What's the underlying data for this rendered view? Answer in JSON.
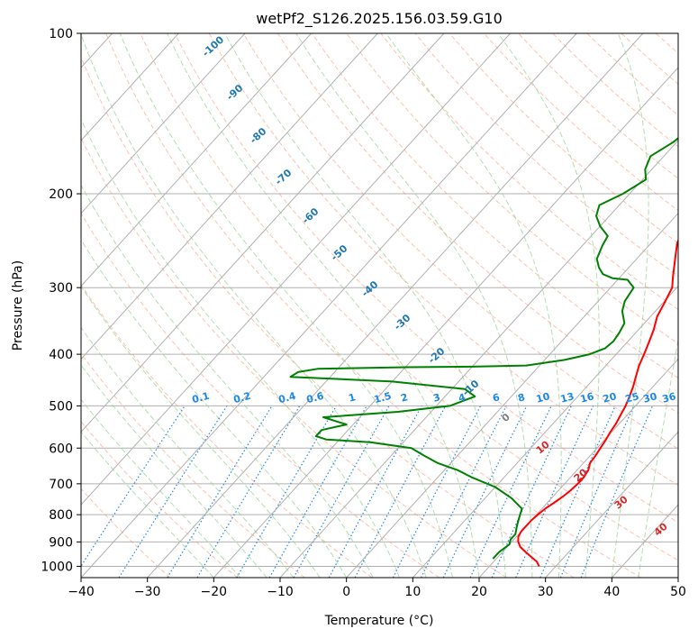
{
  "chart_data": {
    "type": "line",
    "title": "wetPf2_S126.2025.156.03.59.G10",
    "xlabel": "Temperature (°C)",
    "ylabel": "Pressure (hPa)",
    "xlim": [
      -40,
      50
    ],
    "ylim": [
      1050,
      100
    ],
    "y_scale": "log",
    "x_ticks": [
      -40,
      -30,
      -20,
      -10,
      0,
      10,
      20,
      30,
      40,
      50
    ],
    "x_tick_labels": [
      "−40",
      "−30",
      "−20",
      "−10",
      "0",
      "10",
      "20",
      "30",
      "40",
      "50"
    ],
    "y_ticks": [
      100,
      200,
      300,
      400,
      500,
      600,
      700,
      800,
      900,
      1000
    ],
    "y_tick_labels": [
      "100",
      "200",
      "300",
      "400",
      "500",
      "600",
      "700",
      "800",
      "900",
      "1000"
    ],
    "grid": true,
    "colors": {
      "temperature": "#ff0000",
      "dewpoint": "#008000",
      "isotherm_label": "#1f77b4",
      "mixing_ratio": "#1e88e5",
      "dry_adiabat": "#ff8c69",
      "moist_adiabat": "#8fd18f",
      "saturated_label_warm": "#d62728",
      "zero_label": "#7f7f7f"
    },
    "series": [
      {
        "color": "#ff0000",
        "points": [
          [
            27.5,
            1000
          ],
          [
            26.5,
            980
          ],
          [
            25,
            960
          ],
          [
            23.5,
            940
          ],
          [
            22,
            920
          ],
          [
            21,
            900
          ],
          [
            20.3,
            880
          ],
          [
            20,
            860
          ],
          [
            20,
            840
          ],
          [
            20,
            820
          ],
          [
            20.2,
            800
          ],
          [
            20.5,
            780
          ],
          [
            21,
            760
          ],
          [
            21.5,
            740
          ],
          [
            21.8,
            720
          ],
          [
            22,
            700
          ],
          [
            22,
            680
          ],
          [
            21.7,
            660
          ],
          [
            21,
            640
          ],
          [
            20.8,
            620
          ],
          [
            20.5,
            600
          ],
          [
            20.2,
            580
          ],
          [
            19.8,
            560
          ],
          [
            19.5,
            540
          ],
          [
            19,
            520
          ],
          [
            18.5,
            500
          ],
          [
            17.8,
            480
          ],
          [
            17,
            460
          ],
          [
            16,
            440
          ],
          [
            15,
            420
          ],
          [
            14.2,
            400
          ],
          [
            13.3,
            380
          ],
          [
            12.3,
            360
          ],
          [
            11,
            340
          ],
          [
            10.2,
            320
          ],
          [
            9.3,
            300
          ],
          [
            7.8,
            285
          ],
          [
            5.8,
            265
          ],
          [
            4,
            248
          ],
          [
            3,
            235
          ],
          [
            2.8,
            222
          ],
          [
            3.2,
            210
          ],
          [
            3.5,
            195
          ],
          [
            4,
            180
          ],
          [
            4.8,
            168
          ],
          [
            6,
            155
          ],
          [
            7,
            143
          ],
          [
            8.3,
            132
          ],
          [
            8.5,
            124
          ],
          [
            8.7,
            116
          ],
          [
            9.2,
            108
          ],
          [
            11,
            103
          ],
          [
            15,
            100
          ]
        ]
      },
      {
        "color": "#008000",
        "points": [
          [
            19.5,
            968
          ],
          [
            19.5,
            940
          ],
          [
            20,
            910
          ],
          [
            19.5,
            890
          ],
          [
            19.5,
            870
          ],
          [
            18.6,
            840
          ],
          [
            17.8,
            810
          ],
          [
            17,
            780
          ],
          [
            14,
            745
          ],
          [
            10,
            710
          ],
          [
            5,
            680
          ],
          [
            2,
            660
          ],
          [
            -2,
            640
          ],
          [
            -5,
            620
          ],
          [
            -8,
            600
          ],
          [
            -15,
            585
          ],
          [
            -22,
            578
          ],
          [
            -24,
            570
          ],
          [
            -24,
            555
          ],
          [
            -21,
            542
          ],
          [
            -25.5,
            525
          ],
          [
            -15,
            513
          ],
          [
            -8,
            500
          ],
          [
            -5.5,
            480
          ],
          [
            -8,
            465
          ],
          [
            -20,
            450
          ],
          [
            -36,
            441
          ],
          [
            -35.5,
            432
          ],
          [
            -33,
            426
          ],
          [
            -20,
            423
          ],
          [
            -10,
            422
          ],
          [
            -2,
            420
          ],
          [
            3,
            410
          ],
          [
            6,
            400
          ],
          [
            7.5,
            390
          ],
          [
            7.8,
            378
          ],
          [
            7.5,
            364
          ],
          [
            7,
            350
          ],
          [
            5,
            332
          ],
          [
            4,
            318
          ],
          [
            3.5,
            300
          ],
          [
            1.5,
            290
          ],
          [
            -1,
            288
          ],
          [
            -3,
            283
          ],
          [
            -4.5,
            275
          ],
          [
            -6,
            265
          ],
          [
            -7,
            250
          ],
          [
            -7.5,
            240
          ],
          [
            -10,
            230
          ],
          [
            -12,
            220
          ],
          [
            -13,
            210
          ],
          [
            -11,
            200
          ],
          [
            -9.5,
            188
          ],
          [
            -11,
            180
          ],
          [
            -12,
            170
          ],
          [
            -10.5,
            160
          ],
          [
            -9.8,
            150
          ],
          [
            -10,
            140
          ],
          [
            -8,
            132
          ],
          [
            -5,
            124
          ],
          [
            -3,
            116
          ],
          [
            -0.5,
            108
          ],
          [
            0.2,
            100
          ]
        ]
      }
    ],
    "isotherm_labels": [
      "-100",
      "-90",
      "-80",
      "-70",
      "-60",
      "-50",
      "-40",
      "-30",
      "-20",
      "-10"
    ],
    "mixing_ratio_labels": [
      "0.1",
      "0.2",
      "0.4",
      "0.6",
      "1",
      "1.5",
      "2",
      "3",
      "4",
      "6",
      "8",
      "10",
      "13",
      "16",
      "20",
      "25",
      "30",
      "36"
    ],
    "zero_label": "0",
    "saturated_labels": [
      "10",
      "20",
      "30",
      "40"
    ]
  }
}
